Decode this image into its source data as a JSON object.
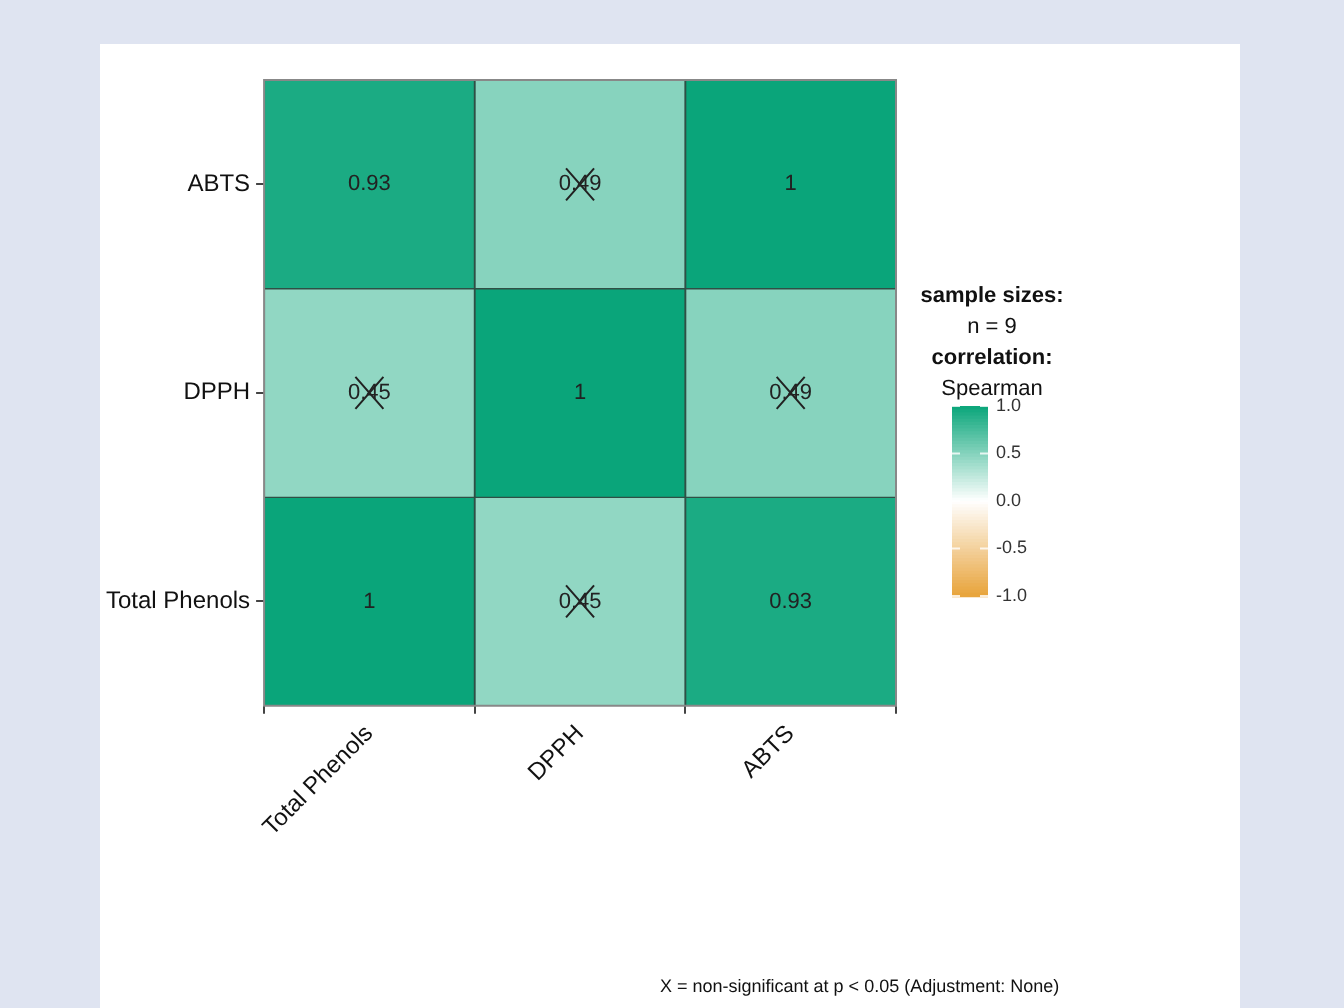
{
  "chart_data": {
    "type": "heatmap",
    "categories": [
      "Total Phenols",
      "DPPH",
      "ABTS"
    ],
    "y_categories": [
      "ABTS",
      "DPPH",
      "Total Phenols"
    ],
    "cells": [
      [
        0.93,
        0.49,
        1
      ],
      [
        0.45,
        1,
        0.49
      ],
      [
        1,
        0.45,
        0.93
      ]
    ],
    "data_labels": true,
    "clabel": "sample sizes:\nn = 9\ncorrelation:\nSpearman",
    "clim": [
      -1,
      1
    ],
    "cticks": [
      {
        "value": 1,
        "label": "1.0"
      },
      {
        "value": 0.5,
        "label": "0.5"
      },
      {
        "value": 0,
        "label": "0.0"
      },
      {
        "value": -0.5,
        "label": "-0.5"
      },
      {
        "value": -1,
        "label": "-1.0"
      }
    ],
    "annotations": [
      "X = non-significant at p < 0.05 (Adjustment: None)"
    ]
  }
}
